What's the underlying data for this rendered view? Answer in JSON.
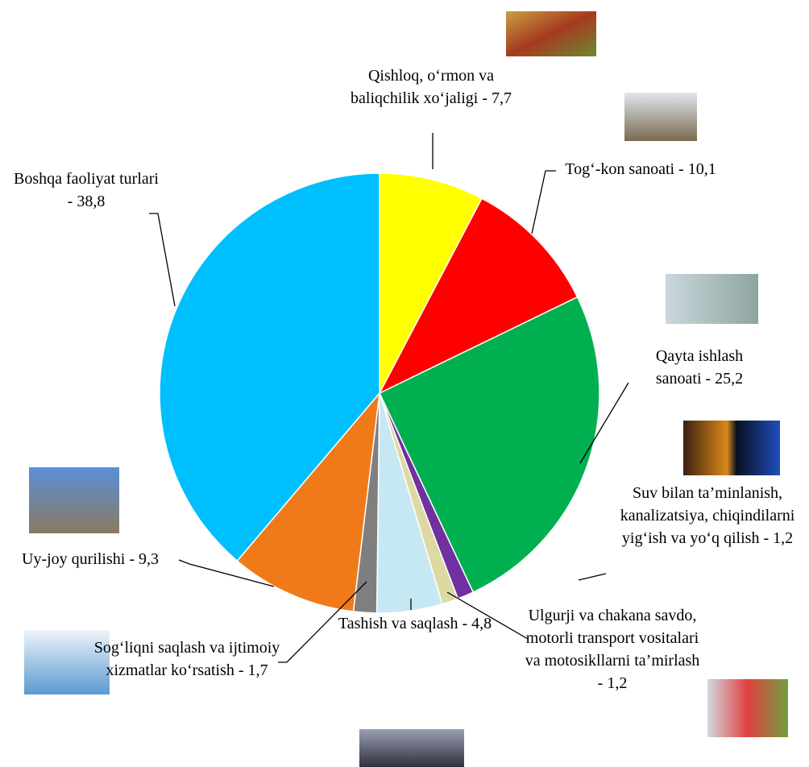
{
  "chart_data": {
    "type": "pie",
    "categories": [
      "Qishloq, o‘rmon va baliqchilik xo‘jaligi -",
      "Tog‘-kon sanoati -",
      "Qayta ishlash sanoati -",
      "Suv bilan ta’minlanish, kanalizatsiya, chiqindilarni yig‘ish va yo‘q qilish -",
      "Ulgurji va chakana savdo, motorli transport vositalari va motosikllarni ta’mirlash -",
      "Tashish va saqlash -",
      "Sog‘liqni saqlash va ijtimoiy xizmatlar ko‘rsatish -",
      "Uy-joy qurilishi -",
      "Boshqa faoliyat turlari -"
    ],
    "values": [
      7.7,
      10.1,
      25.2,
      1.2,
      1.2,
      4.8,
      1.7,
      9.3,
      38.8
    ],
    "value_labels": [
      "7,7",
      "10,1",
      "25,2",
      "1,2",
      "1,2",
      "4,8",
      "1,7",
      "9,3",
      "38,8"
    ],
    "colors": [
      "#ffff00",
      "#ff0000",
      "#00b050",
      "#7030a0",
      "#ddd9a3",
      "#c6e8f2",
      "#7f7f7f",
      "#f07a1a",
      "#00bfff"
    ]
  }
}
